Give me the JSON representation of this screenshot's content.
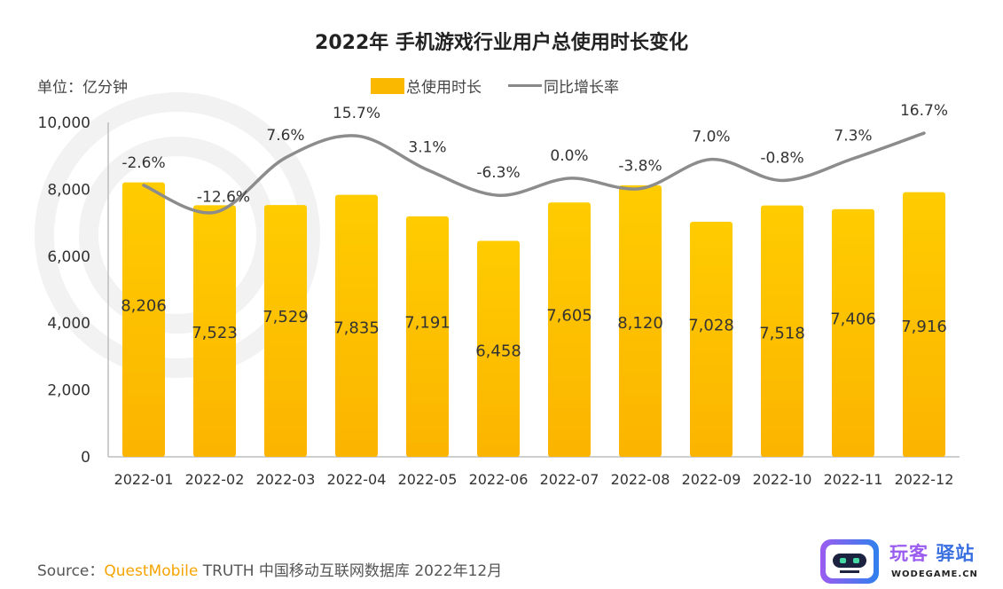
{
  "chart_data": {
    "type": "bar+line",
    "title": "2022年 手机游戏行业用户总使用时长变化",
    "unit_label": "单位：亿分钟",
    "categories": [
      "2022-01",
      "2022-02",
      "2022-03",
      "2022-04",
      "2022-05",
      "2022-06",
      "2022-07",
      "2022-08",
      "2022-09",
      "2022-10",
      "2022-11",
      "2022-12"
    ],
    "series": [
      {
        "name": "总使用时长",
        "type": "bar",
        "color": "#fbb800",
        "values": [
          8206,
          7523,
          7529,
          7835,
          7191,
          6458,
          7605,
          8120,
          7028,
          7518,
          7406,
          7916
        ],
        "labels": [
          "8,206",
          "7,523",
          "7,529",
          "7,835",
          "7,191",
          "6,458",
          "7,605",
          "8,120",
          "7,028",
          "7,518",
          "7,406",
          "7,916"
        ]
      },
      {
        "name": "同比增长率",
        "type": "line",
        "color": "#8c8c8c",
        "values": [
          -2.6,
          -12.6,
          7.6,
          15.7,
          3.1,
          -6.3,
          0.0,
          -3.8,
          7.0,
          -0.8,
          7.3,
          16.7
        ],
        "labels": [
          "-2.6%",
          "-12.6%",
          "7.6%",
          "15.7%",
          "3.1%",
          "-6.3%",
          "0.0%",
          "-3.8%",
          "7.0%",
          "-0.8%",
          "7.3%",
          "16.7%"
        ]
      }
    ],
    "ylim": [
      0,
      10000
    ],
    "yticks": [
      0,
      2000,
      4000,
      6000,
      8000,
      10000
    ],
    "ytick_labels": [
      "0",
      "2,000",
      "4,000",
      "6,000",
      "8,000",
      "10,000"
    ],
    "legend_position": "top-center",
    "grid": false
  },
  "source": {
    "prefix": "Source：",
    "brand": "QuestMobile",
    "rest": " TRUTH 中国移动互联网数据库 2022年12月"
  },
  "logo": {
    "cn_main": "玩客",
    "cn_sub": "驿站",
    "en": "WODEGAME.CN"
  }
}
